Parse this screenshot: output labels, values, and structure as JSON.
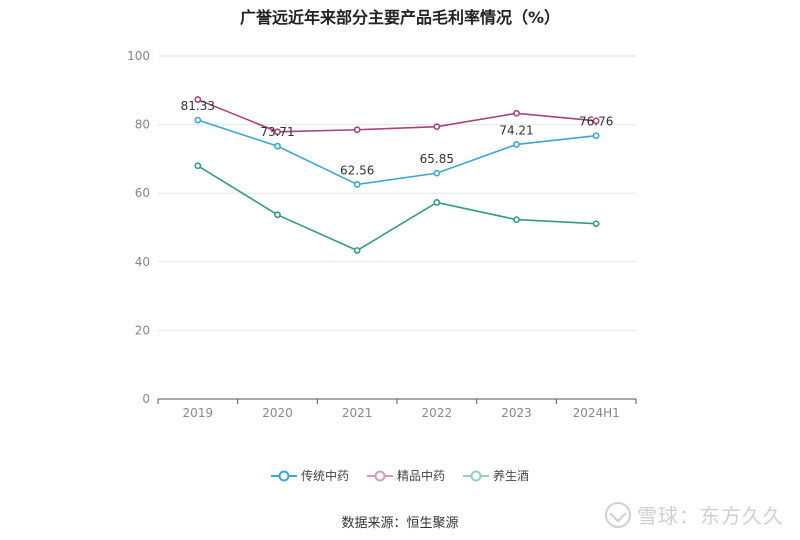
{
  "chart_data": {
    "type": "line",
    "title": "广誉远近年来部分主要产品毛利率情况（%）",
    "categories": [
      "2019",
      "2020",
      "2021",
      "2022",
      "2023",
      "2024H1"
    ],
    "ylim": [
      0,
      100
    ],
    "yticks": [
      0,
      20,
      40,
      60,
      80,
      100
    ],
    "grid": true,
    "legend_position": "bottom",
    "series": [
      {
        "name": "传统中药",
        "color": "#3ba7d6",
        "values": [
          81.33,
          73.71,
          62.56,
          65.85,
          74.21,
          76.76
        ],
        "labels": [
          "81.33",
          "73.71",
          "62.56",
          "65.85",
          "74.21",
          "76.76"
        ]
      },
      {
        "name": "精品中药",
        "color": "#a8427e",
        "values": [
          87.3,
          77.9,
          78.5,
          79.4,
          83.3,
          81.1
        ]
      },
      {
        "name": "养生酒",
        "color": "#2e9d84",
        "values": [
          68.0,
          53.7,
          43.3,
          57.3,
          52.3,
          51.1
        ]
      }
    ]
  },
  "source": "数据来源：恒生聚源",
  "watermark": "雪球：东方久久"
}
